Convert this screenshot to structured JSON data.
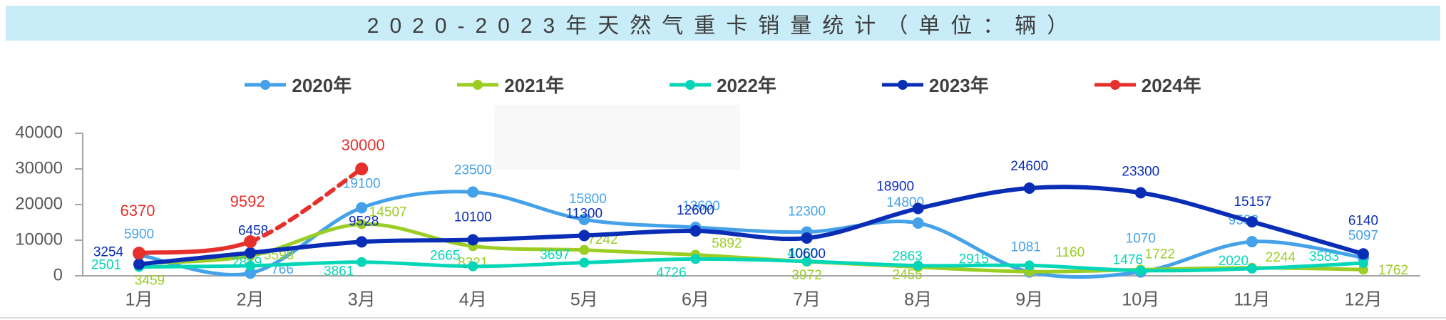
{
  "title": "2020-2023年天然气重卡销量统计（单位：辆）",
  "title_band_color": "#c9edf8",
  "axis": {
    "yticks": [
      0,
      10000,
      20000,
      30000,
      40000
    ],
    "ylim": [
      0,
      40000
    ],
    "axis_color": "#a6a6a6",
    "tick_label_color": "#595959"
  },
  "chart_data": {
    "type": "line",
    "title": "2020-2023年天然气重卡销量统计（单位：辆）",
    "xlabel": "",
    "ylabel": "",
    "ylim": [
      0,
      40000
    ],
    "yticks": [
      0,
      10000,
      20000,
      30000,
      40000
    ],
    "grid": false,
    "legend_position": "top",
    "categories": [
      "1月",
      "2月",
      "3月",
      "4月",
      "5月",
      "6月",
      "7月",
      "8月",
      "9月",
      "10月",
      "11月",
      "12月"
    ],
    "series": [
      {
        "name": "2020年",
        "color": "#45a2e9",
        "style": "solid",
        "values": [
          5900,
          766,
          19100,
          23500,
          15800,
          13600,
          12300,
          14800,
          1081,
          1070,
          9588,
          5097
        ]
      },
      {
        "name": "2021年",
        "color": "#9bcd23",
        "style": "solid",
        "values": [
          3459,
          5598,
          14507,
          8321,
          7242,
          5892,
          3972,
          2455,
          1160,
          1722,
          2244,
          1762
        ]
      },
      {
        "name": "2022年",
        "color": "#06d6b8",
        "style": "solid",
        "values": [
          2501,
          2819,
          3861,
          2665,
          3697,
          4726,
          4060,
          2863,
          2915,
          1476,
          2020,
          3583
        ]
      },
      {
        "name": "2023年",
        "color": "#0a2db5",
        "style": "solid",
        "values": [
          3254,
          6458,
          9528,
          10100,
          11300,
          12600,
          10600,
          18900,
          24600,
          23300,
          15157,
          6140
        ]
      },
      {
        "name": "2024年",
        "color": "#e5302c",
        "style": "solid-then-dashed",
        "dashed_from": 1,
        "values": [
          6370,
          9592,
          30000
        ]
      }
    ]
  }
}
